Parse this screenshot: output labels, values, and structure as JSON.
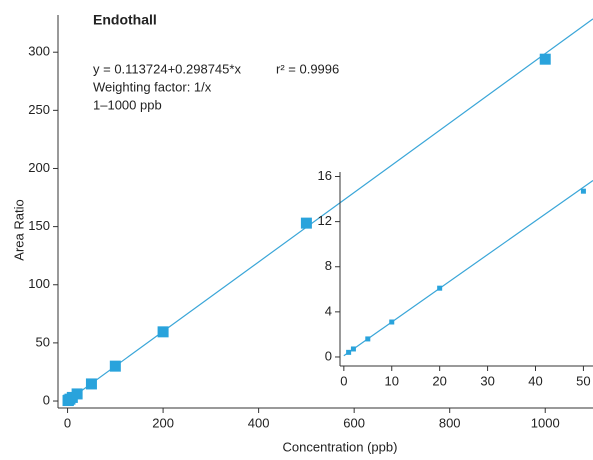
{
  "chart_data": [
    {
      "type": "scatter",
      "title": "Endothall",
      "annotations": [
        "y = 0.113724+0.298745*x",
        "r² = 0.9996",
        "Weighting factor: 1/x",
        "1–1000 ppb"
      ],
      "x_label": "Concentration (ppb)",
      "y_label": "Area Ratio",
      "xlim": [
        -20,
        1100
      ],
      "ylim": [
        -6,
        332
      ],
      "xticks": [
        0,
        200,
        400,
        600,
        800,
        1000
      ],
      "yticks": [
        0,
        50,
        100,
        150,
        200,
        250,
        300
      ],
      "series": [
        {
          "mode": "line",
          "color": "#3aa6d8",
          "x": [
            0,
            1100
          ],
          "values": [
            0.11,
            328.7
          ]
        },
        {
          "mode": "markers",
          "color": "#29a3dc",
          "x": [
            1,
            2,
            5,
            10,
            20,
            50,
            100,
            200,
            500,
            1000
          ],
          "values": [
            0.41,
            0.71,
            1.6,
            3.1,
            6.1,
            14.7,
            30,
            59.5,
            153,
            294
          ]
        }
      ]
    },
    {
      "type": "scatter",
      "xlim": [
        -0.8,
        52
      ],
      "ylim": [
        -0.8,
        16.4
      ],
      "xticks": [
        0,
        10,
        20,
        30,
        40,
        50
      ],
      "yticks": [
        0,
        4,
        8,
        12,
        16
      ],
      "series": [
        {
          "mode": "line",
          "color": "#3aa6d8",
          "x": [
            0,
            52
          ],
          "values": [
            0.11,
            15.65
          ]
        },
        {
          "mode": "markers",
          "color": "#29a3dc",
          "x": [
            1,
            2,
            5,
            10,
            20,
            50
          ],
          "values": [
            0.41,
            0.71,
            1.6,
            3.1,
            6.1,
            14.7
          ]
        }
      ]
    }
  ]
}
